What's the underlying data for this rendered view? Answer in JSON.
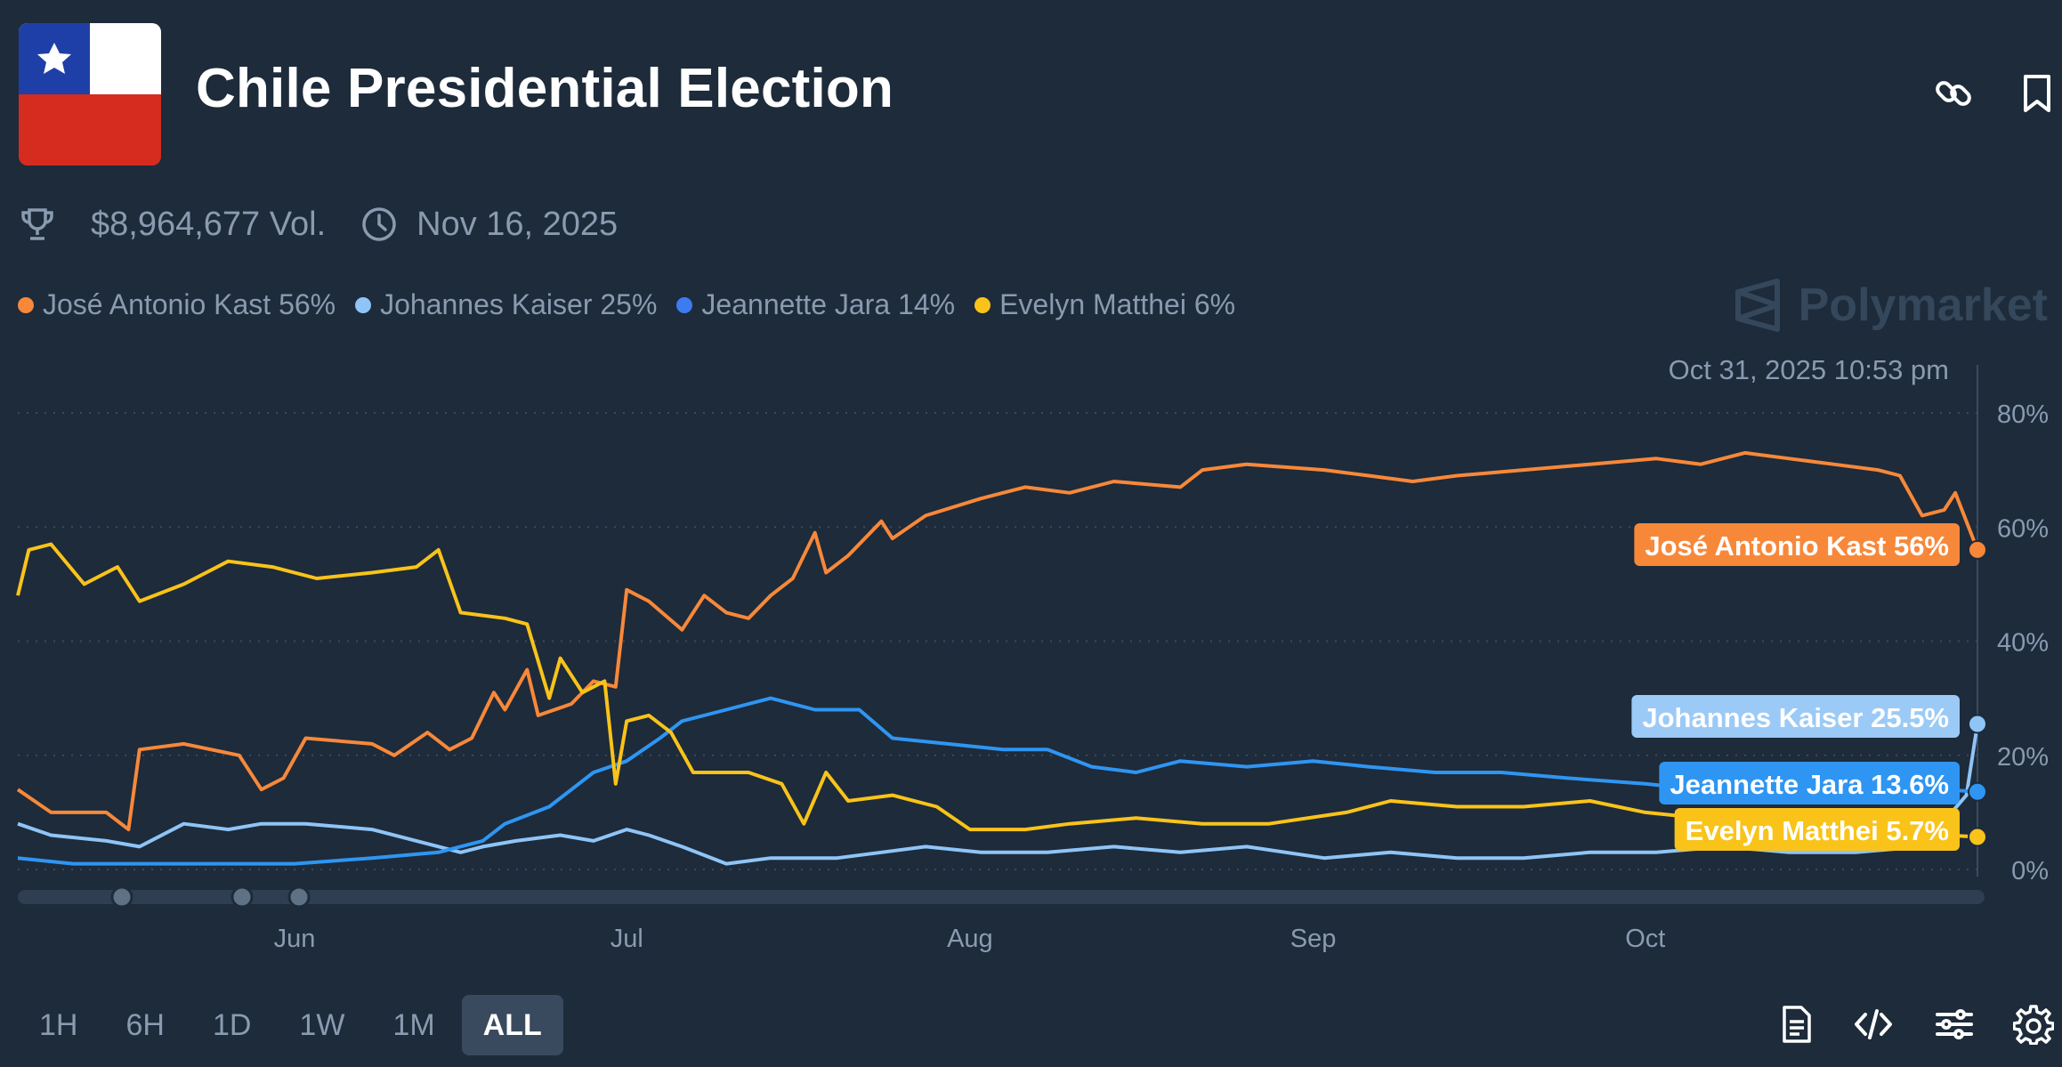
{
  "header": {
    "title": "Chile Presidential Election",
    "volume": "$8,964,677 Vol.",
    "end_date": "Nov 16, 2025",
    "brand": "Polymarket"
  },
  "icons": {
    "flag": "chile-flag-icon",
    "link": "link-icon",
    "bookmark": "bookmark-icon",
    "trophy": "trophy-icon",
    "clock": "clock-icon",
    "document": "document-icon",
    "code": "code-icon",
    "sliders": "sliders-icon",
    "settings": "gear-icon"
  },
  "legend": [
    {
      "label": "José Antonio Kast 56%",
      "color": "#f7883a"
    },
    {
      "label": "Johannes Kaiser 25%",
      "color": "#8fc4f6"
    },
    {
      "label": "Jeannette Jara 14%",
      "color": "#3d7bf0"
    },
    {
      "label": "Evelyn Matthei 6%",
      "color": "#f9c31a"
    }
  ],
  "range_buttons": [
    "1H",
    "6H",
    "1D",
    "1W",
    "1M",
    "ALL"
  ],
  "active_range": "ALL",
  "chart_data": {
    "type": "line",
    "hover_timestamp": "Oct 31, 2025 10:53 pm",
    "x_tick_labels": [
      "Jun",
      "Jul",
      "Aug",
      "Sep",
      "Oct"
    ],
    "x_tick_dates": [
      "2025-06-01",
      "2025-07-01",
      "2025-08-01",
      "2025-09-01",
      "2025-10-01"
    ],
    "x_range": [
      "2025-05-07",
      "2025-10-31"
    ],
    "y_tick_labels": [
      "0%",
      "20%",
      "40%",
      "60%",
      "80%"
    ],
    "yticks": [
      0,
      20,
      40,
      60,
      80
    ],
    "ylim": [
      0,
      80
    ],
    "grid": true,
    "series": [
      {
        "name": "José Antonio Kast",
        "color": "#f7883a",
        "end_label": "José Antonio Kast 56%",
        "points": [
          [
            "2025-05-07",
            14
          ],
          [
            "2025-05-10",
            10
          ],
          [
            "2025-05-15",
            10
          ],
          [
            "2025-05-17",
            7
          ],
          [
            "2025-05-18",
            21
          ],
          [
            "2025-05-22",
            22
          ],
          [
            "2025-05-27",
            20
          ],
          [
            "2025-05-29",
            14
          ],
          [
            "2025-05-31",
            16
          ],
          [
            "2025-06-02",
            23
          ],
          [
            "2025-06-08",
            22
          ],
          [
            "2025-06-10",
            20
          ],
          [
            "2025-06-13",
            24
          ],
          [
            "2025-06-15",
            21
          ],
          [
            "2025-06-17",
            23
          ],
          [
            "2025-06-19",
            31
          ],
          [
            "2025-06-20",
            28
          ],
          [
            "2025-06-22",
            35
          ],
          [
            "2025-06-23",
            27
          ],
          [
            "2025-06-26",
            29
          ],
          [
            "2025-06-28",
            33
          ],
          [
            "2025-06-30",
            32
          ],
          [
            "2025-07-01",
            49
          ],
          [
            "2025-07-03",
            47
          ],
          [
            "2025-07-06",
            42
          ],
          [
            "2025-07-08",
            48
          ],
          [
            "2025-07-10",
            45
          ],
          [
            "2025-07-12",
            44
          ],
          [
            "2025-07-14",
            48
          ],
          [
            "2025-07-16",
            51
          ],
          [
            "2025-07-18",
            59
          ],
          [
            "2025-07-19",
            52
          ],
          [
            "2025-07-21",
            55
          ],
          [
            "2025-07-24",
            61
          ],
          [
            "2025-07-25",
            58
          ],
          [
            "2025-07-28",
            62
          ],
          [
            "2025-08-02",
            65
          ],
          [
            "2025-08-06",
            67
          ],
          [
            "2025-08-10",
            66
          ],
          [
            "2025-08-14",
            68
          ],
          [
            "2025-08-20",
            67
          ],
          [
            "2025-08-22",
            70
          ],
          [
            "2025-08-26",
            71
          ],
          [
            "2025-09-02",
            70
          ],
          [
            "2025-09-06",
            69
          ],
          [
            "2025-09-10",
            68
          ],
          [
            "2025-09-14",
            69
          ],
          [
            "2025-09-20",
            70
          ],
          [
            "2025-09-26",
            71
          ],
          [
            "2025-10-02",
            72
          ],
          [
            "2025-10-06",
            71
          ],
          [
            "2025-10-10",
            73
          ],
          [
            "2025-10-14",
            72
          ],
          [
            "2025-10-18",
            71
          ],
          [
            "2025-10-22",
            70
          ],
          [
            "2025-10-24",
            69
          ],
          [
            "2025-10-26",
            62
          ],
          [
            "2025-10-28",
            63
          ],
          [
            "2025-10-29",
            66
          ],
          [
            "2025-10-31",
            56
          ]
        ]
      },
      {
        "name": "Johannes Kaiser",
        "color": "#8fc4f6",
        "end_label": "Johannes Kaiser 25.5%",
        "points": [
          [
            "2025-05-07",
            8
          ],
          [
            "2025-05-10",
            6
          ],
          [
            "2025-05-15",
            5
          ],
          [
            "2025-05-18",
            4
          ],
          [
            "2025-05-22",
            8
          ],
          [
            "2025-05-26",
            7
          ],
          [
            "2025-05-29",
            8
          ],
          [
            "2025-06-02",
            8
          ],
          [
            "2025-06-08",
            7
          ],
          [
            "2025-06-12",
            5
          ],
          [
            "2025-06-16",
            3
          ],
          [
            "2025-06-18",
            4
          ],
          [
            "2025-06-21",
            5
          ],
          [
            "2025-06-25",
            6
          ],
          [
            "2025-06-28",
            5
          ],
          [
            "2025-07-01",
            7
          ],
          [
            "2025-07-03",
            6
          ],
          [
            "2025-07-06",
            4
          ],
          [
            "2025-07-10",
            1
          ],
          [
            "2025-07-14",
            2
          ],
          [
            "2025-07-20",
            2
          ],
          [
            "2025-07-24",
            3
          ],
          [
            "2025-07-28",
            4
          ],
          [
            "2025-08-02",
            3
          ],
          [
            "2025-08-08",
            3
          ],
          [
            "2025-08-14",
            4
          ],
          [
            "2025-08-20",
            3
          ],
          [
            "2025-08-26",
            4
          ],
          [
            "2025-09-02",
            2
          ],
          [
            "2025-09-08",
            3
          ],
          [
            "2025-09-14",
            2
          ],
          [
            "2025-09-20",
            2
          ],
          [
            "2025-09-26",
            3
          ],
          [
            "2025-10-02",
            3
          ],
          [
            "2025-10-08",
            4
          ],
          [
            "2025-10-14",
            3
          ],
          [
            "2025-10-20",
            3
          ],
          [
            "2025-10-26",
            4
          ],
          [
            "2025-10-30",
            13
          ],
          [
            "2025-10-31",
            25.5
          ]
        ]
      },
      {
        "name": "Jeannette Jara",
        "color": "#2f95f2",
        "end_label": "Jeannette Jara 13.6%",
        "points": [
          [
            "2025-05-07",
            2
          ],
          [
            "2025-05-12",
            1
          ],
          [
            "2025-05-18",
            1
          ],
          [
            "2025-05-25",
            1
          ],
          [
            "2025-06-01",
            1
          ],
          [
            "2025-06-08",
            2
          ],
          [
            "2025-06-14",
            3
          ],
          [
            "2025-06-18",
            5
          ],
          [
            "2025-06-20",
            8
          ],
          [
            "2025-06-24",
            11
          ],
          [
            "2025-06-28",
            17
          ],
          [
            "2025-07-01",
            19
          ],
          [
            "2025-07-04",
            23
          ],
          [
            "2025-07-06",
            26
          ],
          [
            "2025-07-10",
            28
          ],
          [
            "2025-07-14",
            30
          ],
          [
            "2025-07-18",
            28
          ],
          [
            "2025-07-22",
            28
          ],
          [
            "2025-07-25",
            23
          ],
          [
            "2025-07-30",
            22
          ],
          [
            "2025-08-04",
            21
          ],
          [
            "2025-08-08",
            21
          ],
          [
            "2025-08-12",
            18
          ],
          [
            "2025-08-16",
            17
          ],
          [
            "2025-08-20",
            19
          ],
          [
            "2025-08-26",
            18
          ],
          [
            "2025-09-01",
            19
          ],
          [
            "2025-09-06",
            18
          ],
          [
            "2025-09-12",
            17
          ],
          [
            "2025-09-18",
            17
          ],
          [
            "2025-09-24",
            16
          ],
          [
            "2025-10-01",
            15
          ],
          [
            "2025-10-06",
            14
          ],
          [
            "2025-10-12",
            15
          ],
          [
            "2025-10-18",
            14
          ],
          [
            "2025-10-24",
            15
          ],
          [
            "2025-10-28",
            14
          ],
          [
            "2025-10-31",
            13.6
          ]
        ]
      },
      {
        "name": "Evelyn Matthei",
        "color": "#f9c31a",
        "end_label": "Evelyn Matthei 5.7%",
        "points": [
          [
            "2025-05-07",
            48
          ],
          [
            "2025-05-08",
            56
          ],
          [
            "2025-05-10",
            57
          ],
          [
            "2025-05-13",
            50
          ],
          [
            "2025-05-16",
            53
          ],
          [
            "2025-05-18",
            47
          ],
          [
            "2025-05-22",
            50
          ],
          [
            "2025-05-26",
            54
          ],
          [
            "2025-05-30",
            53
          ],
          [
            "2025-06-03",
            51
          ],
          [
            "2025-06-08",
            52
          ],
          [
            "2025-06-12",
            53
          ],
          [
            "2025-06-14",
            56
          ],
          [
            "2025-06-16",
            45
          ],
          [
            "2025-06-20",
            44
          ],
          [
            "2025-06-22",
            43
          ],
          [
            "2025-06-24",
            30
          ],
          [
            "2025-06-25",
            37
          ],
          [
            "2025-06-27",
            31
          ],
          [
            "2025-06-29",
            33
          ],
          [
            "2025-06-30",
            15
          ],
          [
            "2025-07-01",
            26
          ],
          [
            "2025-07-03",
            27
          ],
          [
            "2025-07-05",
            24
          ],
          [
            "2025-07-07",
            17
          ],
          [
            "2025-07-12",
            17
          ],
          [
            "2025-07-15",
            15
          ],
          [
            "2025-07-17",
            8
          ],
          [
            "2025-07-19",
            17
          ],
          [
            "2025-07-21",
            12
          ],
          [
            "2025-07-25",
            13
          ],
          [
            "2025-07-29",
            11
          ],
          [
            "2025-08-01",
            7
          ],
          [
            "2025-08-06",
            7
          ],
          [
            "2025-08-10",
            8
          ],
          [
            "2025-08-16",
            9
          ],
          [
            "2025-08-22",
            8
          ],
          [
            "2025-08-28",
            8
          ],
          [
            "2025-09-04",
            10
          ],
          [
            "2025-09-08",
            12
          ],
          [
            "2025-09-14",
            11
          ],
          [
            "2025-09-20",
            11
          ],
          [
            "2025-09-26",
            12
          ],
          [
            "2025-10-01",
            10
          ],
          [
            "2025-10-06",
            9
          ],
          [
            "2025-10-12",
            9
          ],
          [
            "2025-10-18",
            8
          ],
          [
            "2025-10-24",
            7
          ],
          [
            "2025-10-28",
            6
          ],
          [
            "2025-10-31",
            5.7
          ]
        ]
      }
    ]
  }
}
